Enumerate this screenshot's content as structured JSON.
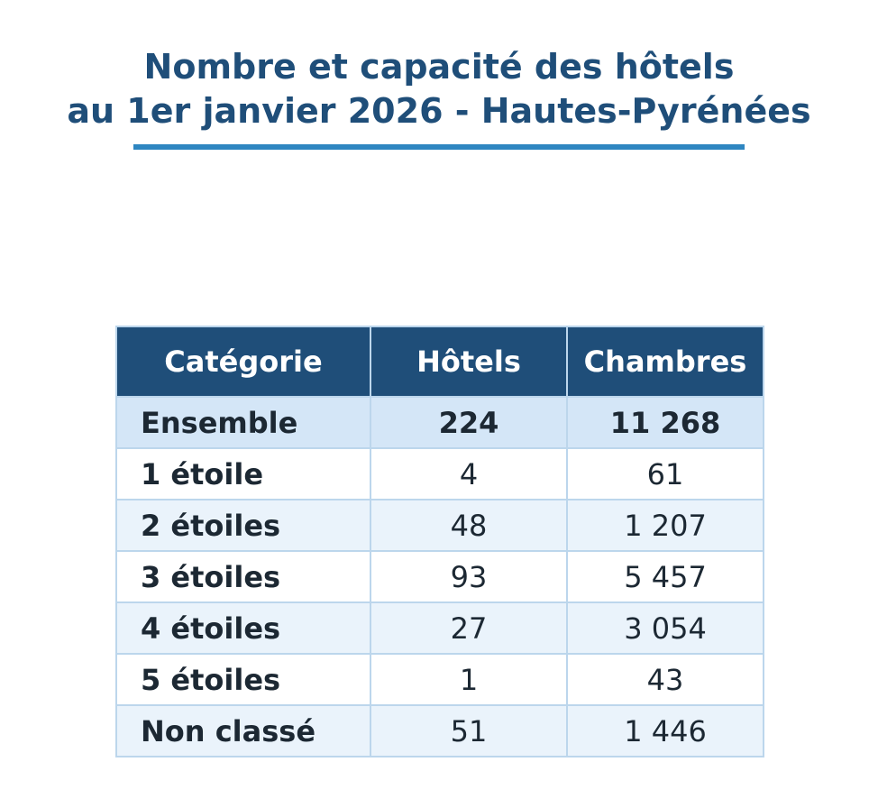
{
  "title_lines": [
    "Nombre et capacité des hôtels",
    "au 1er janvier 2026 - Hautes-Pyrénées"
  ],
  "colors": {
    "title": "#1f4e79",
    "rule": "#2e86c1",
    "header_bg": "#1f4e79",
    "total_bg": "#d4e6f7",
    "stripe_bg": "#eaf3fb",
    "border": "#bcd6ec"
  },
  "chart_data": {
    "type": "table",
    "columns": [
      "Catégorie",
      "Hôtels",
      "Chambres"
    ],
    "rows": [
      [
        "Ensemble",
        "224",
        "11 268"
      ],
      [
        "1 étoile",
        "4",
        "61"
      ],
      [
        "2 étoiles",
        "48",
        "1 207"
      ],
      [
        "3 étoiles",
        "93",
        "5 457"
      ],
      [
        "4 étoiles",
        "27",
        "3 054"
      ],
      [
        "5 étoiles",
        "1",
        "43"
      ],
      [
        "Non classé",
        "51",
        "1 446"
      ]
    ]
  }
}
